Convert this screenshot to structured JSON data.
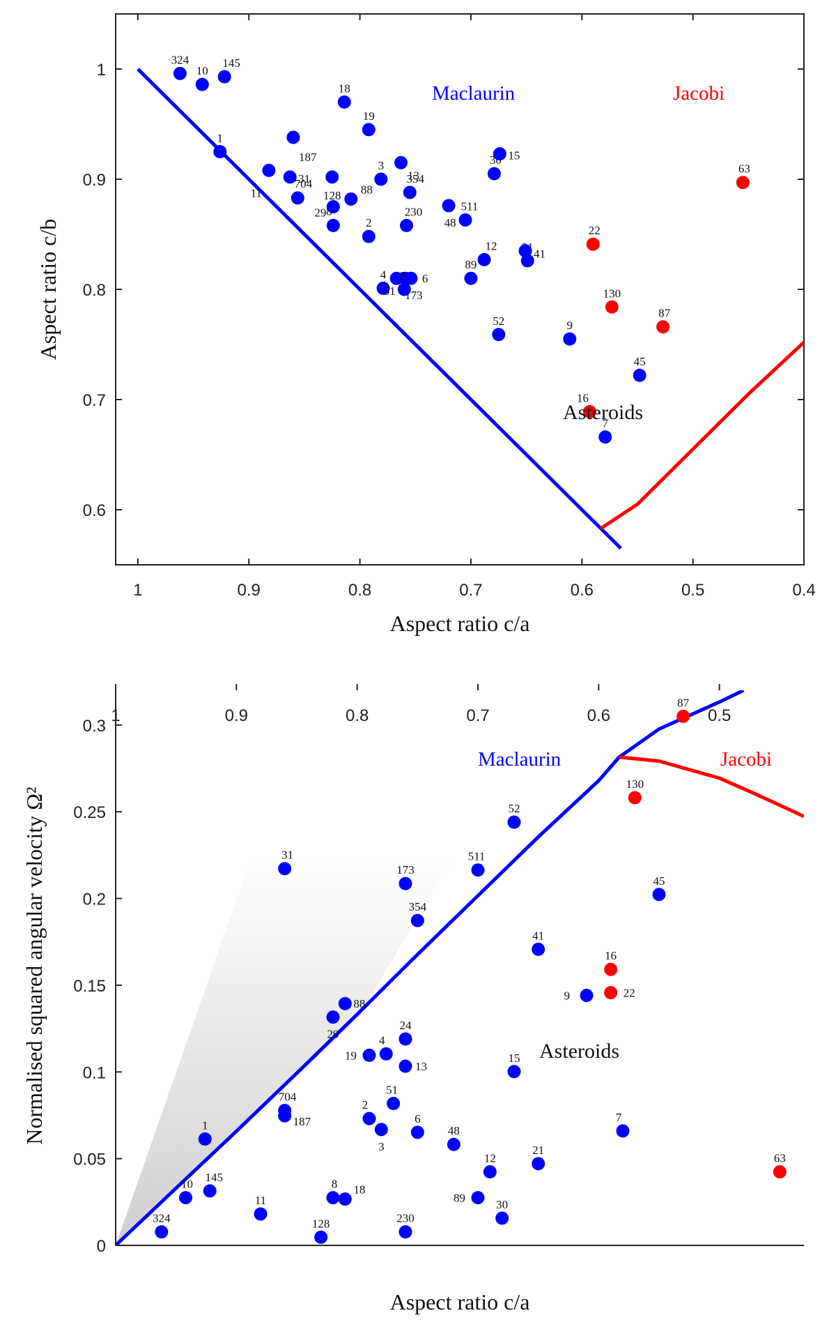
{
  "colors": {
    "maclaurin": "#0000ff",
    "jacobi": "#ff0000",
    "blue_point": "#0000ff",
    "red_point": "#ff0000",
    "axes": "#222222"
  },
  "chart_data": [
    {
      "type": "scatter",
      "xlabel": "Aspect ratio c/a",
      "ylabel": "Aspect ratio c/b",
      "xlim": [
        1.02,
        0.4
      ],
      "ylim": [
        1.05,
        0.55
      ],
      "x_reversed": true,
      "y_reversed": true,
      "xticks": [
        1,
        0.9,
        0.8,
        0.7,
        0.6,
        0.5,
        0.4
      ],
      "xtick_labels": [
        "1",
        "0.9",
        "0.8",
        "0.7",
        "0.6",
        "0.5",
        "0.4"
      ],
      "yticks": [
        0.6,
        0.7,
        0.8,
        0.9,
        1.0
      ],
      "ytick_labels": [
        "0.6",
        "0.7",
        "0.8",
        "0.9",
        "1"
      ],
      "grid": false,
      "curves": [
        {
          "name": "Maclaurin",
          "color": "#0000ff",
          "points": [
            [
              1.0,
              1.0
            ],
            [
              0.583,
              0.583
            ],
            [
              0.565,
              0.565
            ]
          ]
        },
        {
          "name": "Jacobi",
          "color": "#ff0000",
          "points": [
            [
              0.583,
              0.583
            ],
            [
              0.55,
              0.605
            ],
            [
              0.5,
              0.655
            ],
            [
              0.45,
              0.705
            ],
            [
              0.4,
              0.752
            ]
          ]
        }
      ],
      "annotations": [
        {
          "text": "Asteroids",
          "x": 0.59,
          "y": 0.909
        }
      ],
      "series": [
        {
          "name": "blue",
          "color": "#0000ff",
          "points": [
            {
              "label": "1",
              "x": 0.926,
              "y": 0.925
            },
            {
              "label": "10",
              "x": 0.942,
              "y": 0.986
            },
            {
              "label": "324",
              "x": 0.962,
              "y": 0.996
            },
            {
              "label": "145",
              "x": 0.922,
              "y": 0.993
            },
            {
              "label": "11",
              "x": 0.882,
              "y": 0.908
            },
            {
              "label": "187",
              "x": 0.86,
              "y": 0.938
            },
            {
              "label": "31",
              "x": 0.863,
              "y": 0.902
            },
            {
              "label": "704",
              "x": 0.856,
              "y": 0.883
            },
            {
              "label": "8",
              "x": 0.824,
              "y": 0.858
            },
            {
              "label": "29",
              "x": 0.824,
              "y": 0.875
            },
            {
              "label": "128",
              "x": 0.825,
              "y": 0.902
            },
            {
              "label": "88",
              "x": 0.808,
              "y": 0.882
            },
            {
              "label": "18",
              "x": 0.814,
              "y": 0.97
            },
            {
              "label": "19",
              "x": 0.792,
              "y": 0.945
            },
            {
              "label": "2",
              "x": 0.792,
              "y": 0.848
            },
            {
              "label": "3",
              "x": 0.781,
              "y": 0.9
            },
            {
              "label": "4",
              "x": 0.779,
              "y": 0.801
            },
            {
              "label": "51",
              "x": 0.767,
              "y": 0.81
            },
            {
              "label": "173",
              "x": 0.759,
              "y": 0.81
            },
            {
              "label": "24",
              "x": 0.76,
              "y": 0.8
            },
            {
              "label": "6",
              "x": 0.754,
              "y": 0.81
            },
            {
              "label": "230",
              "x": 0.758,
              "y": 0.858
            },
            {
              "label": "354",
              "x": 0.755,
              "y": 0.888
            },
            {
              "label": "13",
              "x": 0.763,
              "y": 0.915
            },
            {
              "label": "48",
              "x": 0.72,
              "y": 0.876
            },
            {
              "label": "511",
              "x": 0.705,
              "y": 0.863
            },
            {
              "label": "89",
              "x": 0.7,
              "y": 0.81
            },
            {
              "label": "12",
              "x": 0.688,
              "y": 0.827
            },
            {
              "label": "30",
              "x": 0.679,
              "y": 0.905
            },
            {
              "label": "15",
              "x": 0.674,
              "y": 0.923
            },
            {
              "label": "52",
              "x": 0.675,
              "y": 0.759
            },
            {
              "label": "21",
              "x": 0.649,
              "y": 0.826
            },
            {
              "label": "41",
              "x": 0.651,
              "y": 0.835
            },
            {
              "label": "9",
              "x": 0.611,
              "y": 0.755
            },
            {
              "label": "7",
              "x": 0.579,
              "y": 0.666
            },
            {
              "label": "45",
              "x": 0.548,
              "y": 0.722
            }
          ]
        },
        {
          "name": "red",
          "color": "#ff0000",
          "points": [
            {
              "label": "16",
              "x": 0.593,
              "y": 0.689
            },
            {
              "label": "130",
              "x": 0.573,
              "y": 0.784
            },
            {
              "label": "87",
              "x": 0.527,
              "y": 0.766
            },
            {
              "label": "22",
              "x": 0.59,
              "y": 0.841
            },
            {
              "label": "63",
              "x": 0.455,
              "y": 0.897
            }
          ]
        }
      ]
    },
    {
      "type": "scatter",
      "xlabel": "Aspect ratio c/a",
      "ylabel": "Normalised squared angular velocity Ω²",
      "xlim": [
        1.0,
        0.43
      ],
      "ylim": [
        0,
        0.32
      ],
      "x_reversed": true,
      "xticks": [
        1,
        0.9,
        0.8,
        0.7,
        0.6,
        0.5
      ],
      "xtick_labels": [
        "1",
        "0.9",
        "0.8",
        "0.7",
        "0.6",
        "0.5"
      ],
      "yticks": [
        0,
        0.05,
        0.1,
        0.15,
        0.2,
        0.25,
        0.3
      ],
      "ytick_labels": [
        "0",
        "0.05",
        "0.1",
        "0.15",
        "0.2",
        "0.25",
        "0.3"
      ],
      "grid": false,
      "shaded_region": [
        [
          1.0,
          0.0
        ],
        [
          0.887,
          0.225
        ],
        [
          0.72,
          0.225
        ],
        [
          0.8,
          0.13
        ],
        [
          1.0,
          0.0
        ]
      ],
      "curves": [
        {
          "name": "Maclaurin",
          "color": "#0000ff",
          "points": [
            [
              1.0,
              0.0
            ],
            [
              0.95,
              0.033
            ],
            [
              0.9,
              0.0658
            ],
            [
              0.85,
              0.0993
            ],
            [
              0.8,
              0.1332
            ],
            [
              0.75,
              0.1677
            ],
            [
              0.7,
              0.2016
            ],
            [
              0.65,
              0.2355
            ],
            [
              0.6,
              0.2679
            ],
            [
              0.583,
              0.2815
            ],
            [
              0.55,
              0.2977
            ],
            [
              0.5,
              0.3133
            ],
            [
              0.48,
              0.32
            ]
          ]
        },
        {
          "name": "Jacobi",
          "color": "#ff0000",
          "points": [
            [
              0.583,
              0.2815
            ],
            [
              0.55,
              0.2792
            ],
            [
              0.5,
              0.2694
            ],
            [
              0.47,
              0.2602
            ],
            [
              0.43,
              0.2473
            ]
          ]
        }
      ],
      "annotations": [
        {
          "text": "Asteroids",
          "x": 0.6,
          "y": 0.1102
        }
      ],
      "series": [
        {
          "name": "blue",
          "color": "#0000ff",
          "points": [
            {
              "label": "1",
              "x": 0.926,
              "y": 0.0613
            },
            {
              "label": "10",
              "x": 0.942,
              "y": 0.0275
            },
            {
              "label": "145",
              "x": 0.922,
              "y": 0.0314
            },
            {
              "label": "324",
              "x": 0.962,
              "y": 0.0078
            },
            {
              "label": "11",
              "x": 0.88,
              "y": 0.0181
            },
            {
              "label": "704",
              "x": 0.86,
              "y": 0.0778
            },
            {
              "label": "187",
              "x": 0.86,
              "y": 0.0747
            },
            {
              "label": "31",
              "x": 0.86,
              "y": 0.2172
            },
            {
              "label": "29",
              "x": 0.82,
              "y": 0.1316
            },
            {
              "label": "88",
              "x": 0.81,
              "y": 0.1394
            },
            {
              "label": "8",
              "x": 0.82,
              "y": 0.0275
            },
            {
              "label": "18",
              "x": 0.81,
              "y": 0.0267
            },
            {
              "label": "128",
              "x": 0.83,
              "y": 0.0047
            },
            {
              "label": "19",
              "x": 0.79,
              "y": 0.1096
            },
            {
              "label": "4",
              "x": 0.776,
              "y": 0.1104
            },
            {
              "label": "24",
              "x": 0.76,
              "y": 0.119
            },
            {
              "label": "13",
              "x": 0.76,
              "y": 0.1033
            },
            {
              "label": "2",
              "x": 0.79,
              "y": 0.0731
            },
            {
              "label": "51",
              "x": 0.77,
              "y": 0.0818
            },
            {
              "label": "3",
              "x": 0.78,
              "y": 0.0668
            },
            {
              "label": "6",
              "x": 0.75,
              "y": 0.0652
            },
            {
              "label": "230",
              "x": 0.76,
              "y": 0.0078
            },
            {
              "label": "173",
              "x": 0.76,
              "y": 0.2086
            },
            {
              "label": "354",
              "x": 0.75,
              "y": 0.1873
            },
            {
              "label": "511",
              "x": 0.7,
              "y": 0.2164
            },
            {
              "label": "48",
              "x": 0.72,
              "y": 0.0582
            },
            {
              "label": "89",
              "x": 0.7,
              "y": 0.0275
            },
            {
              "label": "30",
              "x": 0.68,
              "y": 0.0157
            },
            {
              "label": "12",
              "x": 0.69,
              "y": 0.0424
            },
            {
              "label": "21",
              "x": 0.65,
              "y": 0.0471
            },
            {
              "label": "15",
              "x": 0.67,
              "y": 0.1002
            },
            {
              "label": "41",
              "x": 0.65,
              "y": 0.1707
            },
            {
              "label": "52",
              "x": 0.67,
              "y": 0.244
            },
            {
              "label": "9",
              "x": 0.61,
              "y": 0.1441
            },
            {
              "label": "7",
              "x": 0.58,
              "y": 0.066
            },
            {
              "label": "45",
              "x": 0.55,
              "y": 0.2023
            }
          ]
        },
        {
          "name": "red",
          "color": "#ff0000",
          "points": [
            {
              "label": "16",
              "x": 0.59,
              "y": 0.1591
            },
            {
              "label": "22",
              "x": 0.59,
              "y": 0.1457
            },
            {
              "label": "130",
              "x": 0.57,
              "y": 0.2581
            },
            {
              "label": "87",
              "x": 0.53,
              "y": 0.305
            },
            {
              "label": "63",
              "x": 0.45,
              "y": 0.0424
            }
          ]
        }
      ]
    }
  ]
}
